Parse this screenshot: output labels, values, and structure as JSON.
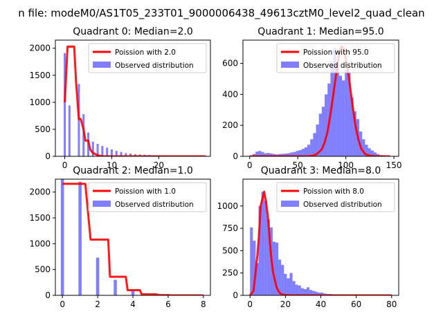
{
  "figure_title": "n file: modeM0/AS1T05_233T01_9000006438_49613cztM0_level2_quad_clean",
  "colors": {
    "poisson": "#ff0000",
    "observed": "#0000ff",
    "observed_opacity": 0.5,
    "axis": "#000000"
  },
  "chart_data": [
    {
      "type": "bar",
      "title": "Quadrant 0: Median=2.0",
      "xlim": [
        -2,
        31
      ],
      "ylim": [
        0,
        2150
      ],
      "xticks": [
        0,
        10,
        20
      ],
      "yticks": [
        0,
        500,
        1000,
        1500,
        2000
      ],
      "legend_position": "top-right",
      "legend": [
        "Poission with 2.0",
        "Observed distribution"
      ],
      "poisson": {
        "name": "Poission with 2.0",
        "type": "line",
        "x": [
          0,
          0.6,
          1,
          2,
          2.4,
          3,
          3.4,
          4,
          4.4,
          5,
          5.4,
          6,
          7,
          8,
          30
        ],
        "y": [
          1000,
          2030,
          2030,
          2030,
          1380,
          690,
          690,
          500,
          290,
          290,
          130,
          60,
          20,
          0,
          0
        ]
      },
      "observed": {
        "name": "Observed distribution",
        "type": "bar",
        "bar_width": 0.45,
        "x": [
          0,
          1,
          3,
          4,
          5,
          6,
          7,
          8,
          9,
          10,
          11,
          12,
          13,
          14,
          15,
          16,
          17,
          18,
          19,
          20,
          21,
          22,
          23,
          24,
          25,
          26,
          27,
          28,
          29
        ],
        "y": [
          1910,
          940,
          1340,
          780,
          440,
          270,
          230,
          190,
          160,
          130,
          100,
          80,
          60,
          50,
          40,
          35,
          30,
          25,
          20,
          18,
          15,
          12,
          10,
          8,
          6,
          5,
          4,
          3,
          2
        ]
      }
    },
    {
      "type": "bar",
      "title": "Quadrant 1: Median=95.0",
      "xlim": [
        -7,
        155
      ],
      "ylim": [
        0,
        750
      ],
      "xticks": [
        0,
        50,
        100,
        150
      ],
      "yticks": [
        0,
        200,
        400,
        600
      ],
      "legend_position": "top-right",
      "legend": [
        "Poission with 95.0",
        "Observed distribution"
      ],
      "poisson": {
        "name": "Poission with 95.0",
        "type": "line",
        "x": [
          0,
          60,
          65,
          70,
          75,
          78,
          81,
          84,
          87,
          90,
          92,
          94,
          96,
          98,
          100,
          102,
          104,
          107,
          110,
          113,
          116,
          120,
          125,
          130,
          146
        ],
        "y": [
          0,
          0,
          3,
          15,
          45,
          90,
          160,
          270,
          400,
          530,
          620,
          690,
          710,
          690,
          630,
          560,
          470,
          330,
          200,
          110,
          50,
          15,
          3,
          0,
          0
        ]
      },
      "observed": {
        "name": "Observed distribution",
        "type": "hist",
        "bin_start": 0,
        "bin_width": 3,
        "y": [
          0,
          15,
          30,
          35,
          28,
          20,
          22,
          18,
          15,
          12,
          15,
          16,
          18,
          20,
          25,
          28,
          35,
          40,
          48,
          58,
          75,
          110,
          150,
          205,
          275,
          320,
          400,
          470,
          600,
          700,
          590,
          520,
          490,
          560,
          540,
          380,
          290,
          240,
          160,
          110,
          75,
          52,
          38,
          25,
          15,
          8,
          5,
          3,
          2
        ]
      }
    },
    {
      "type": "bar",
      "title": "Quadrant 2: Median=1.0",
      "xlim": [
        -0.4,
        8.4
      ],
      "ylim": [
        0,
        2250
      ],
      "xticks": [
        0,
        2,
        4,
        6,
        8
      ],
      "yticks": [
        0,
        500,
        1000,
        1500,
        2000
      ],
      "legend_position": "top-right",
      "legend": [
        "Poission with 1.0",
        "Observed distribution"
      ],
      "poisson": {
        "name": "Poission with 1.0",
        "type": "line",
        "x": [
          0,
          1.3,
          1.6,
          2.6,
          2.7,
          3.6,
          3.7,
          4.4,
          4.5,
          5.3,
          5.5,
          6.0,
          6.2,
          8.0
        ],
        "y": [
          2160,
          2160,
          1080,
          1080,
          360,
          360,
          100,
          100,
          20,
          20,
          5,
          5,
          0,
          0
        ]
      },
      "observed": {
        "name": "Observed distribution",
        "type": "bar",
        "bar_width": 0.18,
        "x": [
          0,
          1,
          2,
          3,
          4,
          5
        ],
        "y": [
          2250,
          2200,
          730,
          300,
          90,
          15
        ]
      }
    },
    {
      "type": "bar",
      "title": "Quadrant 3: Median=8.0",
      "xlim": [
        -4,
        84
      ],
      "ylim": [
        0,
        1300
      ],
      "xticks": [
        0,
        20,
        40,
        60,
        80
      ],
      "yticks": [
        0,
        250,
        500,
        750,
        1000
      ],
      "legend_position": "top-right",
      "legend": [
        "Poission with 8.0",
        "Observed distribution"
      ],
      "poisson": {
        "name": "Poission with 8.0",
        "type": "line",
        "x": [
          0,
          2,
          4,
          5,
          6,
          7,
          8,
          9,
          10,
          11,
          12,
          13,
          14,
          15,
          16,
          17,
          18,
          20,
          25,
          80
        ],
        "y": [
          0,
          50,
          420,
          650,
          1000,
          1080,
          1160,
          1050,
          900,
          650,
          420,
          260,
          170,
          90,
          50,
          25,
          10,
          3,
          0,
          0
        ]
      },
      "observed": {
        "name": "Observed distribution",
        "type": "hist",
        "bin_start": 0,
        "bin_width": 1.6,
        "y": [
          760,
          610,
          360,
          1000,
          1160,
          1060,
          850,
          760,
          600,
          590,
          400,
          340,
          240,
          190,
          250,
          160,
          120,
          110,
          80,
          70,
          90,
          60,
          50,
          40,
          30,
          30,
          20,
          15,
          15,
          10,
          10,
          8,
          6,
          5,
          4,
          3,
          2,
          2,
          1,
          1,
          1,
          1,
          1,
          1,
          1,
          1,
          1,
          1,
          1
        ]
      }
    }
  ]
}
